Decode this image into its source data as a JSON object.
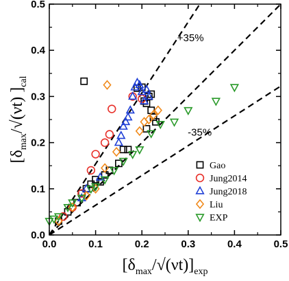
{
  "chart_data": {
    "type": "scatter",
    "xlabel": {
      "main": "[δ",
      "sub1": "max",
      "mid": "/√(νt)]",
      "sub2": "exp"
    },
    "ylabel": {
      "main": "[δ",
      "sub1": "max",
      "mid": "/√(νt) ]",
      "sub2": "cal"
    },
    "xlim": [
      0.0,
      0.5
    ],
    "ylim": [
      0.0,
      0.5
    ],
    "xticks": [
      "0.0",
      "0.1",
      "0.2",
      "0.3",
      "0.4",
      "0.5"
    ],
    "yticks": [
      "0.0",
      "0.1",
      "0.2",
      "0.3",
      "0.4",
      "0.5"
    ],
    "legend_position": "lower-right",
    "reference_lines": [
      {
        "label": "+35%",
        "slope": 1.538
      },
      {
        "label": "-35%",
        "slope": 0.645
      }
    ],
    "series": [
      {
        "name": "Gao",
        "marker": "square",
        "color": "#000000",
        "points": [
          [
            0.02,
            0.03
          ],
          [
            0.04,
            0.05
          ],
          [
            0.06,
            0.07
          ],
          [
            0.07,
            0.09
          ],
          [
            0.08,
            0.1
          ],
          [
            0.09,
            0.11
          ],
          [
            0.1,
            0.12
          ],
          [
            0.11,
            0.115
          ],
          [
            0.12,
            0.13
          ],
          [
            0.13,
            0.14
          ],
          [
            0.15,
            0.155
          ],
          [
            0.16,
            0.185
          ],
          [
            0.17,
            0.185
          ],
          [
            0.075,
            0.333
          ],
          [
            0.19,
            0.318
          ],
          [
            0.2,
            0.32
          ],
          [
            0.205,
            0.29
          ],
          [
            0.21,
            0.285
          ],
          [
            0.215,
            0.3
          ],
          [
            0.22,
            0.305
          ],
          [
            0.21,
            0.23
          ],
          [
            0.22,
            0.27
          ],
          [
            0.225,
            0.255
          ],
          [
            0.23,
            0.245
          ]
        ]
      },
      {
        "name": "Jung2014",
        "marker": "circle",
        "color": "#e8302a",
        "points": [
          [
            0.03,
            0.04
          ],
          [
            0.05,
            0.06
          ],
          [
            0.07,
            0.09
          ],
          [
            0.09,
            0.14
          ],
          [
            0.1,
            0.175
          ],
          [
            0.12,
            0.2
          ],
          [
            0.13,
            0.218
          ],
          [
            0.135,
            0.273
          ],
          [
            0.18,
            0.3
          ],
          [
            0.2,
            0.295
          ]
        ]
      },
      {
        "name": "Jung2018",
        "marker": "triangle-up",
        "color": "#1f3fd6",
        "points": [
          [
            0.07,
            0.08
          ],
          [
            0.08,
            0.1
          ],
          [
            0.11,
            0.125
          ],
          [
            0.15,
            0.2
          ],
          [
            0.155,
            0.215
          ],
          [
            0.16,
            0.235
          ],
          [
            0.165,
            0.245
          ],
          [
            0.17,
            0.255
          ],
          [
            0.175,
            0.27
          ],
          [
            0.18,
            0.3
          ],
          [
            0.185,
            0.32
          ],
          [
            0.19,
            0.33
          ],
          [
            0.195,
            0.325
          ],
          [
            0.2,
            0.31
          ],
          [
            0.205,
            0.29
          ],
          [
            0.21,
            0.315
          ],
          [
            0.215,
            0.3
          ]
        ]
      },
      {
        "name": "Liu",
        "marker": "diamond",
        "color": "#f08a1c",
        "points": [
          [
            0.02,
            0.03
          ],
          [
            0.05,
            0.06
          ],
          [
            0.08,
            0.085
          ],
          [
            0.1,
            0.1
          ],
          [
            0.12,
            0.145
          ],
          [
            0.145,
            0.18
          ],
          [
            0.195,
            0.225
          ],
          [
            0.205,
            0.245
          ],
          [
            0.215,
            0.25
          ],
          [
            0.225,
            0.26
          ],
          [
            0.235,
            0.27
          ],
          [
            0.125,
            0.325
          ]
        ]
      },
      {
        "name": "EXP",
        "marker": "triangle-down",
        "color": "#2a9a2a",
        "points": [
          [
            0.0,
            0.03
          ],
          [
            0.01,
            0.035
          ],
          [
            0.02,
            0.04
          ],
          [
            0.04,
            0.06
          ],
          [
            0.05,
            0.07
          ],
          [
            0.07,
            0.08
          ],
          [
            0.09,
            0.1
          ],
          [
            0.1,
            0.105
          ],
          [
            0.12,
            0.12
          ],
          [
            0.14,
            0.14
          ],
          [
            0.16,
            0.16
          ],
          [
            0.18,
            0.175
          ],
          [
            0.195,
            0.185
          ],
          [
            0.22,
            0.22
          ],
          [
            0.24,
            0.24
          ],
          [
            0.27,
            0.245
          ],
          [
            0.3,
            0.27
          ],
          [
            0.36,
            0.29
          ],
          [
            0.4,
            0.32
          ]
        ]
      }
    ]
  }
}
